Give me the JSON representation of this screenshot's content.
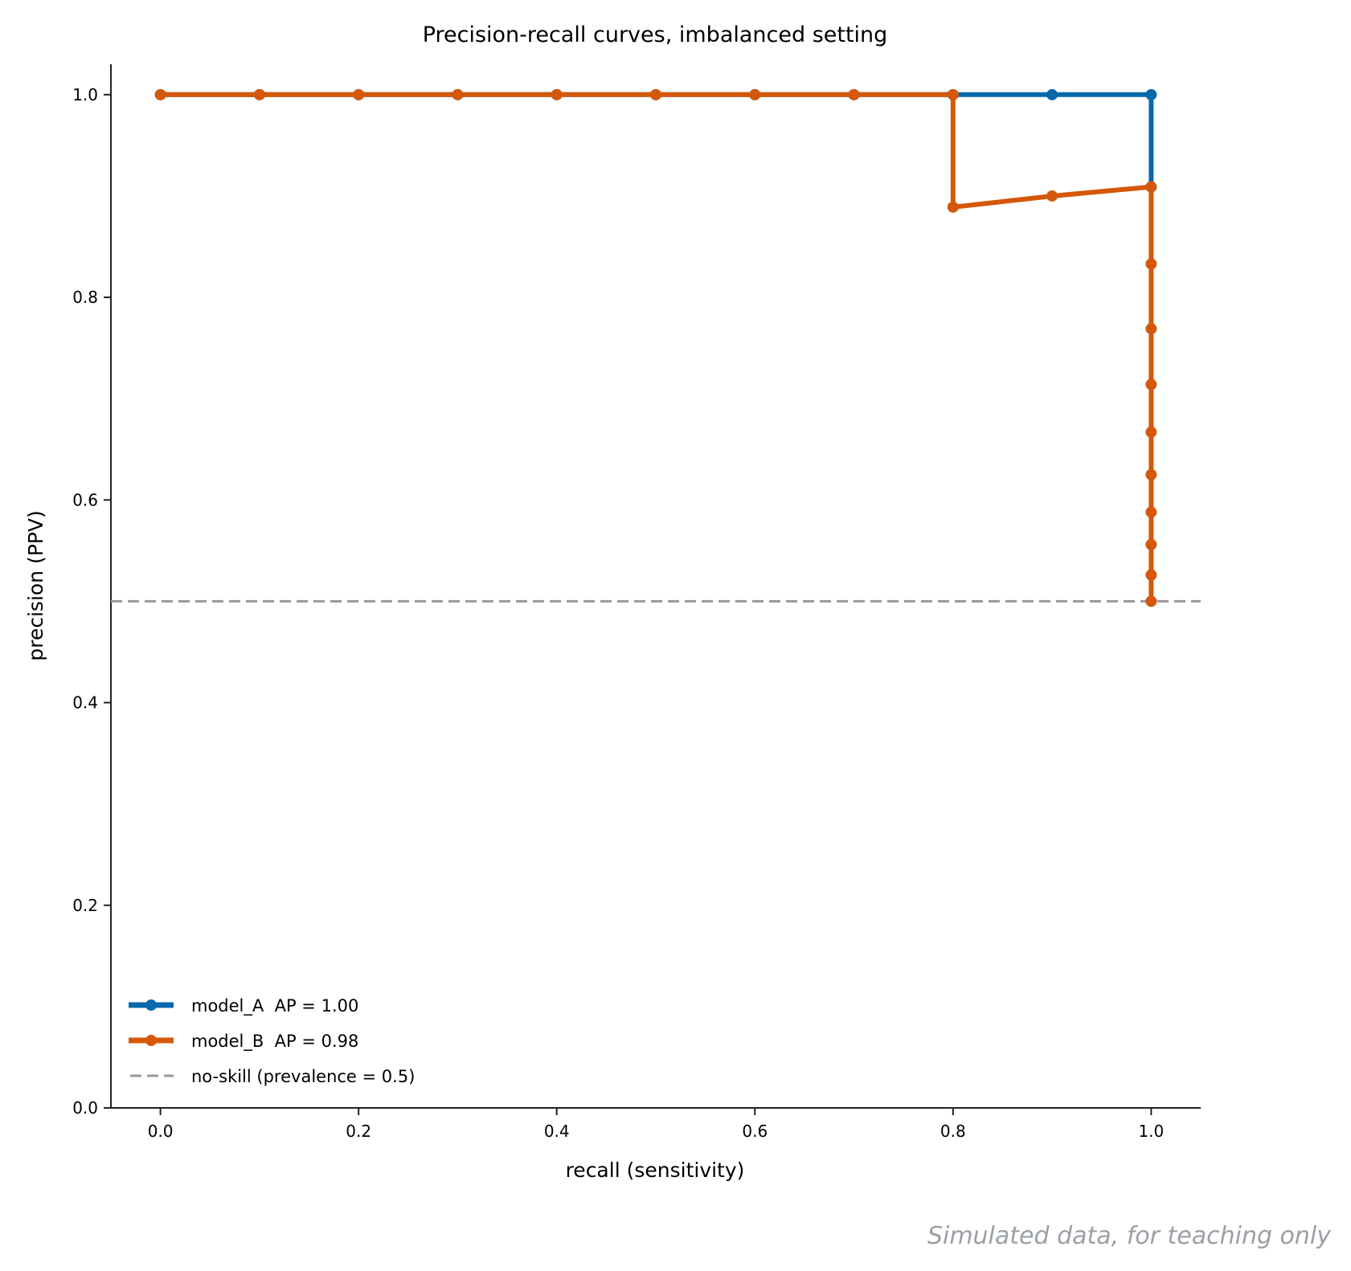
{
  "chart_data": {
    "type": "line",
    "title": "Precision-recall curves, imbalanced setting",
    "xlabel": "recall (sensitivity)",
    "ylabel": "precision (PPV)",
    "xlim": [
      -0.05,
      1.05
    ],
    "ylim": [
      0.0,
      1.03
    ],
    "xticks": [
      0.0,
      0.2,
      0.4,
      0.6,
      0.8,
      1.0
    ],
    "xtick_labels": [
      "0.0",
      "0.2",
      "0.4",
      "0.6",
      "0.8",
      "1.0"
    ],
    "yticks": [
      0.0,
      0.2,
      0.4,
      0.6,
      0.8,
      1.0
    ],
    "ytick_labels": [
      "0.0",
      "0.2",
      "0.4",
      "0.6",
      "0.8",
      "1.0"
    ],
    "grid": false,
    "legend_position": "lower-left",
    "series": [
      {
        "name": "model_A  AP = 1.00",
        "color": "#0868ac",
        "marker": "circle",
        "x": [
          0.0,
          0.1,
          0.2,
          0.3,
          0.4,
          0.5,
          0.6,
          0.7,
          0.8,
          0.9,
          1.0,
          1.0
        ],
        "y": [
          1.0,
          1.0,
          1.0,
          1.0,
          1.0,
          1.0,
          1.0,
          1.0,
          1.0,
          1.0,
          1.0,
          0.909
        ]
      },
      {
        "name": "model_B  AP = 0.98",
        "color": "#d4580a",
        "marker": "circle",
        "x": [
          0.0,
          0.1,
          0.2,
          0.3,
          0.4,
          0.5,
          0.6,
          0.7,
          0.8,
          0.8,
          0.9,
          1.0,
          1.0,
          1.0,
          1.0,
          1.0,
          1.0,
          1.0,
          1.0,
          1.0,
          1.0
        ],
        "y": [
          1.0,
          1.0,
          1.0,
          1.0,
          1.0,
          1.0,
          1.0,
          1.0,
          1.0,
          0.889,
          0.9,
          0.909,
          0.833,
          0.769,
          0.714,
          0.667,
          0.625,
          0.588,
          0.556,
          0.526,
          0.5
        ]
      }
    ],
    "reference_line": {
      "name": "no-skill (prevalence = 0.5)",
      "y": 0.5,
      "style": "dashed",
      "color": "#999999"
    }
  },
  "footnote": "Simulated data, for teaching only"
}
